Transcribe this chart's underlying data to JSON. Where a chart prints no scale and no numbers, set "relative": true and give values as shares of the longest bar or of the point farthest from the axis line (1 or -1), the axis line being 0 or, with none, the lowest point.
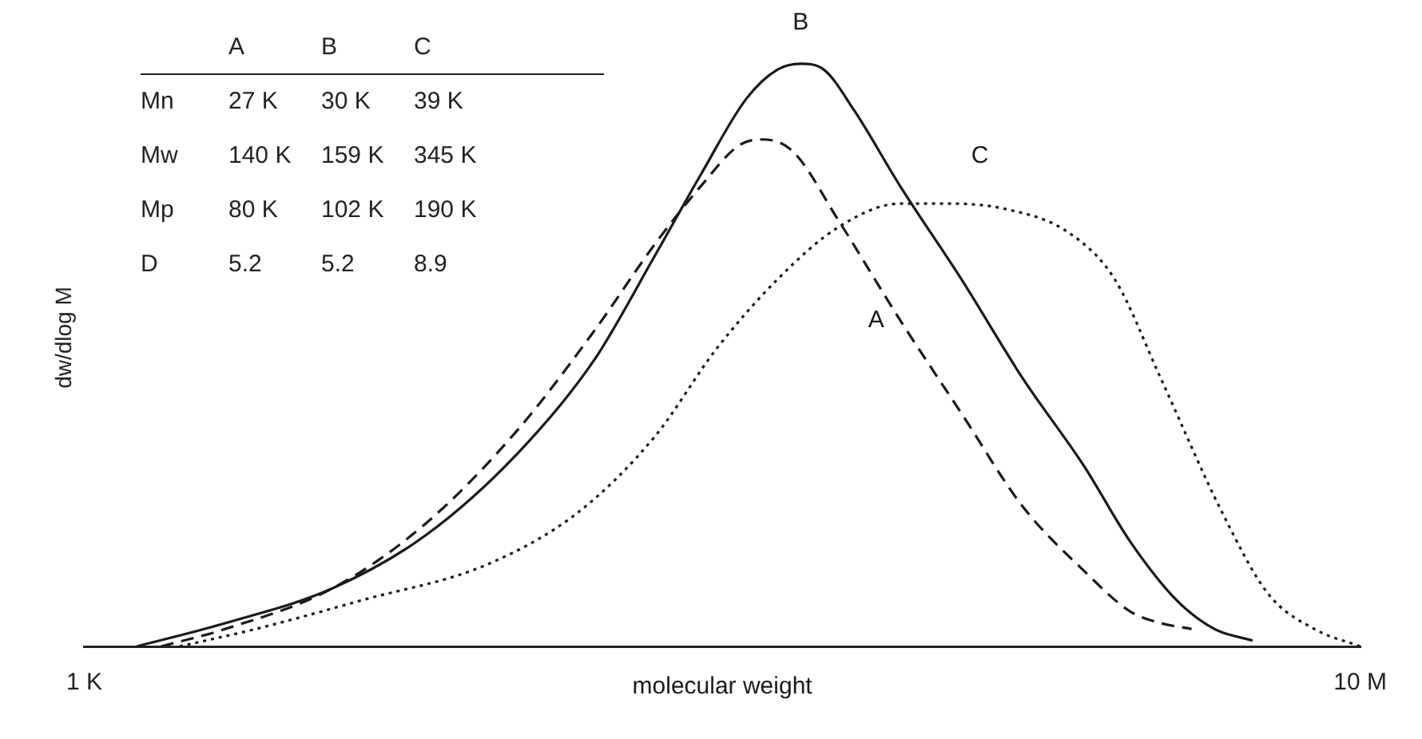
{
  "chart_data": {
    "type": "line",
    "relative": true,
    "xlabel": "molecular weight",
    "ylabel": "dw/dlog M",
    "log": "x",
    "legend": false,
    "xlim": [
      1000,
      10000000
    ],
    "xticks": [
      {
        "value": 1000,
        "label": "1 K"
      },
      {
        "value": 10000000,
        "label": "10 M"
      }
    ],
    "annotations": [
      "A",
      "B",
      "C",
      "Mn",
      "27 K",
      "30 K",
      "39 K",
      "Mw",
      "140 K",
      "159 K",
      "345 K",
      "Mp",
      "80 K",
      "102 K",
      "190 K",
      "D",
      "5.2",
      "5.2",
      "8.9"
    ],
    "series": [
      {
        "name": "A",
        "color": "#1a1a1a",
        "line_style": "dashed",
        "x": [
          1740,
          2770,
          6010,
          11700,
          22700,
          39500,
          61400,
          85700,
          113000,
          133000,
          166000,
          232000,
          361000,
          562000,
          875000,
          1360000,
          1900000,
          2370000,
          2960000
        ],
        "values": [
          0,
          0.03,
          0.1,
          0.21,
          0.37,
          0.54,
          0.69,
          0.79,
          0.86,
          0.87,
          0.85,
          0.73,
          0.56,
          0.4,
          0.24,
          0.13,
          0.06,
          0.04,
          0.03
        ]
      },
      {
        "name": "B",
        "color": "#1a1a1a",
        "line_style": "solid",
        "x": [
          1460,
          2770,
          6010,
          11700,
          22700,
          39500,
          61400,
          85700,
          119000,
          149000,
          176000,
          208000,
          259000,
          361000,
          562000,
          875000,
          1360000,
          1900000,
          2650000,
          3490000,
          4600000
        ],
        "values": [
          0,
          0.04,
          0.1,
          0.19,
          0.33,
          0.49,
          0.67,
          0.81,
          0.94,
          0.99,
          1,
          0.99,
          0.92,
          0.79,
          0.63,
          0.46,
          0.31,
          0.18,
          0.08,
          0.03,
          0.01
        ]
      },
      {
        "name": "C",
        "color": "#1a1a1a",
        "line_style": "dotted",
        "x": [
          1990,
          3450,
          7500,
          18200,
          35300,
          61400,
          95700,
          149000,
          232000,
          361000,
          504000,
          783000,
          1220000,
          1700000,
          2370000,
          3690000,
          5150000,
          7180000,
          10000000
        ],
        "values": [
          0,
          0.03,
          0.08,
          0.14,
          0.23,
          0.36,
          0.51,
          0.63,
          0.72,
          0.76,
          0.76,
          0.75,
          0.71,
          0.63,
          0.46,
          0.23,
          0.09,
          0.03,
          0
        ]
      }
    ]
  }
}
